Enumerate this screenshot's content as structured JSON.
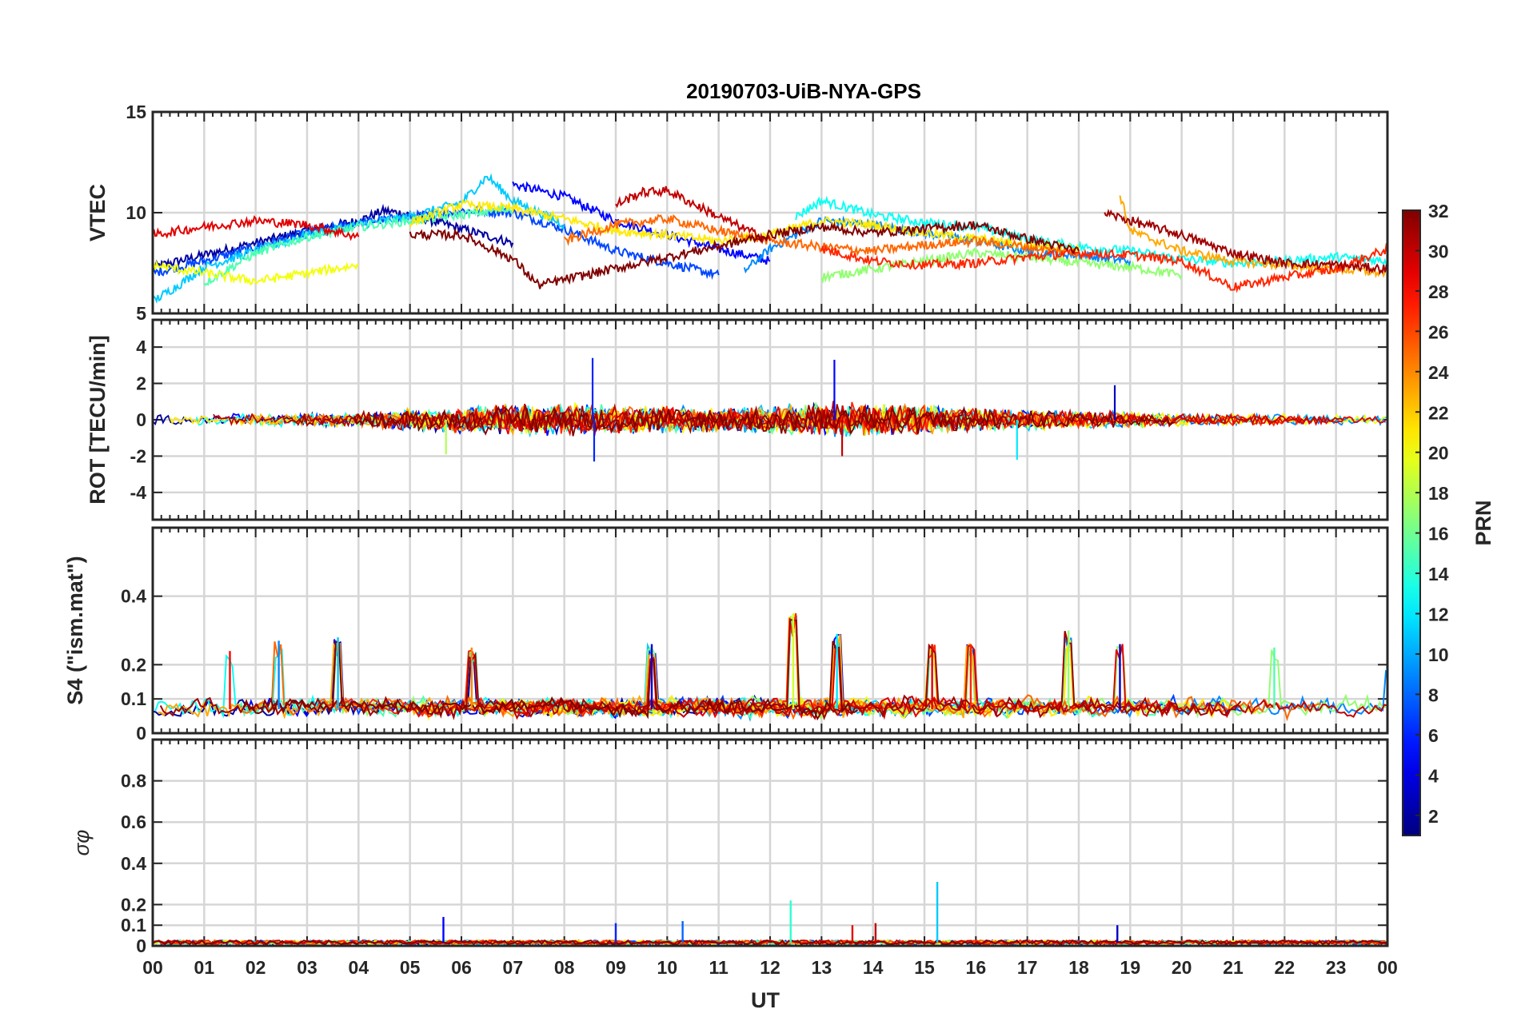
{
  "figure": {
    "title": "20190703-UiB-NYA-GPS",
    "xlabel": "UT"
  },
  "chart_data": [
    {
      "type": "line",
      "panel": "vtec",
      "title": "20190703-UiB-NYA-GPS",
      "ylabel": "VTEC",
      "ylim": [
        5,
        15
      ],
      "yticks": [
        5,
        10,
        15
      ],
      "xlim": [
        0,
        24
      ],
      "xticklabels": [
        "00",
        "01",
        "02",
        "03",
        "04",
        "05",
        "06",
        "07",
        "08",
        "09",
        "10",
        "11",
        "12",
        "13",
        "14",
        "15",
        "16",
        "17",
        "18",
        "19",
        "20",
        "21",
        "22",
        "23",
        "00"
      ],
      "xlabel": "UT",
      "grid": true,
      "series": [
        {
          "prn": 2,
          "x": [
            0,
            1,
            2,
            3,
            4,
            4.5,
            5,
            6,
            7
          ],
          "y": [
            7.3,
            7.9,
            8.5,
            9.1,
            9.6,
            10.1,
            9.9,
            9.2,
            8.5
          ]
        },
        {
          "prn": 5,
          "x": [
            7,
            8,
            9,
            10,
            11,
            12
          ],
          "y": [
            11.4,
            10.8,
            9.6,
            8.9,
            8.2,
            7.6
          ]
        },
        {
          "prn": 7,
          "x": [
            0,
            1,
            2,
            3,
            4,
            5,
            6,
            7,
            8,
            9,
            10,
            11
          ],
          "y": [
            7.0,
            7.6,
            8.3,
            9.0,
            9.5,
            9.8,
            10.1,
            10.0,
            9.2,
            8.1,
            7.5,
            6.9
          ]
        },
        {
          "prn": 9,
          "x": [
            11.5,
            12,
            13,
            14,
            15,
            16,
            17,
            18,
            19
          ],
          "y": [
            7.1,
            8.2,
            9.6,
            9.4,
            9.0,
            8.6,
            8.1,
            7.9,
            7.6
          ]
        },
        {
          "prn": 11,
          "x": [
            0,
            0.5,
            1,
            2,
            3,
            4,
            5,
            6,
            6.5,
            7,
            8
          ],
          "y": [
            5.6,
            6.4,
            7.3,
            8.1,
            8.9,
            9.4,
            9.8,
            10.5,
            11.8,
            10.6,
            9.4
          ]
        },
        {
          "prn": 13,
          "x": [
            12.5,
            13,
            14,
            15,
            16,
            17,
            18,
            19,
            20,
            21,
            22,
            23,
            24
          ],
          "y": [
            9.8,
            10.6,
            9.9,
            9.5,
            9.3,
            8.7,
            8.3,
            8.1,
            7.7,
            7.5,
            7.6,
            7.8,
            7.6
          ]
        },
        {
          "prn": 15,
          "x": [
            1,
            2,
            3,
            4,
            5,
            6,
            7
          ],
          "y": [
            6.5,
            8.0,
            8.8,
            9.3,
            9.6,
            9.9,
            10.2
          ]
        },
        {
          "prn": 17,
          "x": [
            13,
            14,
            15,
            16,
            17,
            18,
            19,
            20
          ],
          "y": [
            6.8,
            7.2,
            7.6,
            8.0,
            7.8,
            7.5,
            7.3,
            6.9
          ]
        },
        {
          "prn": 20,
          "x": [
            0,
            1,
            2,
            3,
            4
          ],
          "y": [
            7.4,
            7.0,
            6.6,
            7.0,
            7.4
          ]
        },
        {
          "prn": 21,
          "x": [
            5,
            6,
            7,
            8,
            9,
            10,
            11,
            12,
            13,
            14,
            15,
            16,
            17,
            18
          ],
          "y": [
            9.5,
            10.4,
            10.2,
            9.7,
            9.1,
            8.9,
            8.6,
            8.9,
            9.6,
            9.4,
            9.0,
            8.7,
            8.4,
            8.2
          ]
        },
        {
          "prn": 23,
          "x": [
            18.8,
            19,
            20,
            21,
            22,
            23,
            24
          ],
          "y": [
            10.9,
            9.1,
            8.1,
            7.6,
            7.4,
            7.2,
            7.0
          ]
        },
        {
          "prn": 25,
          "x": [
            8,
            9,
            10,
            11,
            12,
            13,
            14,
            15,
            16,
            17,
            18
          ],
          "y": [
            8.6,
            9.4,
            9.7,
            9.1,
            8.6,
            8.3,
            8.1,
            8.4,
            8.6,
            8.3,
            8.0
          ]
        },
        {
          "prn": 27,
          "x": [
            13,
            14,
            15,
            16,
            17,
            18,
            19,
            20,
            21,
            22,
            23,
            24
          ],
          "y": [
            8.2,
            7.6,
            7.4,
            7.5,
            7.8,
            8.0,
            7.9,
            7.6,
            6.3,
            6.8,
            7.2,
            8.2
          ]
        },
        {
          "prn": 29,
          "x": [
            0,
            1,
            2,
            3,
            4
          ],
          "y": [
            8.9,
            9.3,
            9.6,
            9.4,
            8.8
          ]
        },
        {
          "prn": 30,
          "x": [
            9,
            9.5,
            10,
            11,
            12
          ],
          "y": [
            10.4,
            11.0,
            11.1,
            9.8,
            8.6
          ]
        },
        {
          "prn": 31,
          "x": [
            18.5,
            19,
            20,
            21,
            22,
            23,
            24
          ],
          "y": [
            10.0,
            9.6,
            8.9,
            8.0,
            7.5,
            7.4,
            7.2
          ]
        },
        {
          "prn": 32,
          "x": [
            5,
            6,
            7,
            7.5,
            12,
            13,
            14,
            15,
            16,
            17,
            18
          ],
          "y": [
            8.9,
            8.9,
            7.7,
            6.4,
            8.9,
            9.3,
            9.0,
            9.2,
            9.4,
            8.7,
            8.1
          ]
        }
      ]
    },
    {
      "type": "line",
      "panel": "rot",
      "ylabel": "ROT [TECU/min]",
      "ylim": [
        -5.5,
        5.5
      ],
      "yticks": [
        -4,
        -2,
        0,
        2,
        4
      ],
      "xlim": [
        0,
        24
      ],
      "grid": true,
      "annotations": [
        {
          "x": 8.55,
          "y": 3.4
        },
        {
          "x": 8.58,
          "y": -2.3
        },
        {
          "x": 13.25,
          "y": 3.3
        },
        {
          "x": 13.4,
          "y": -2.0
        },
        {
          "x": 5.7,
          "y": -1.9
        },
        {
          "x": 16.8,
          "y": -2.2
        },
        {
          "x": 18.7,
          "y": 1.9
        }
      ],
      "noise_envelope": {
        "x": [
          0,
          4,
          5,
          6,
          8,
          9,
          10,
          11,
          12,
          13,
          14,
          15,
          16,
          17,
          18,
          19,
          20,
          24
        ],
        "amplitude": [
          0.25,
          0.35,
          0.55,
          0.65,
          0.8,
          0.75,
          0.65,
          0.6,
          0.7,
          0.9,
          0.8,
          0.75,
          0.6,
          0.5,
          0.45,
          0.4,
          0.3,
          0.25
        ]
      }
    },
    {
      "type": "line",
      "panel": "s4",
      "ylabel": "S4 (\"ism.mat\")",
      "ylim": [
        0,
        0.6
      ],
      "yticks": [
        0,
        0.1,
        0.2,
        0.4
      ],
      "xlim": [
        0,
        24
      ],
      "grid": true,
      "spikes": [
        {
          "x": 1.5,
          "y": 0.24
        },
        {
          "x": 2.45,
          "y": 0.27
        },
        {
          "x": 3.6,
          "y": 0.28
        },
        {
          "x": 6.2,
          "y": 0.25
        },
        {
          "x": 9.7,
          "y": 0.26
        },
        {
          "x": 12.45,
          "y": 0.35
        },
        {
          "x": 13.3,
          "y": 0.29
        },
        {
          "x": 15.15,
          "y": 0.26
        },
        {
          "x": 15.9,
          "y": 0.26
        },
        {
          "x": 17.8,
          "y": 0.3
        },
        {
          "x": 18.8,
          "y": 0.26
        },
        {
          "x": 21.8,
          "y": 0.25
        },
        {
          "x": 24,
          "y": 0.2
        }
      ],
      "baseline": 0.07
    },
    {
      "type": "line",
      "panel": "sigma_phi",
      "ylabel": "σφ",
      "ylim": [
        0,
        1
      ],
      "yticks": [
        0,
        0.1,
        0.2,
        0.4,
        0.6,
        0.8
      ],
      "xlim": [
        0,
        24
      ],
      "grid": true,
      "spikes": [
        {
          "x": 5.65,
          "y": 0.14
        },
        {
          "x": 12.4,
          "y": 0.22
        },
        {
          "x": 15.25,
          "y": 0.31
        },
        {
          "x": 9.0,
          "y": 0.11
        },
        {
          "x": 10.3,
          "y": 0.12
        },
        {
          "x": 13.6,
          "y": 0.1
        },
        {
          "x": 14.05,
          "y": 0.11
        },
        {
          "x": 18.75,
          "y": 0.1
        }
      ],
      "baseline": 0.015
    },
    {
      "type": "heatmap",
      "panel": "colorbar",
      "label": "PRN",
      "range": [
        1,
        32
      ],
      "ticks": [
        2,
        4,
        6,
        8,
        10,
        12,
        14,
        16,
        18,
        20,
        22,
        24,
        26,
        28,
        30,
        32
      ],
      "colormap": "jet"
    }
  ]
}
